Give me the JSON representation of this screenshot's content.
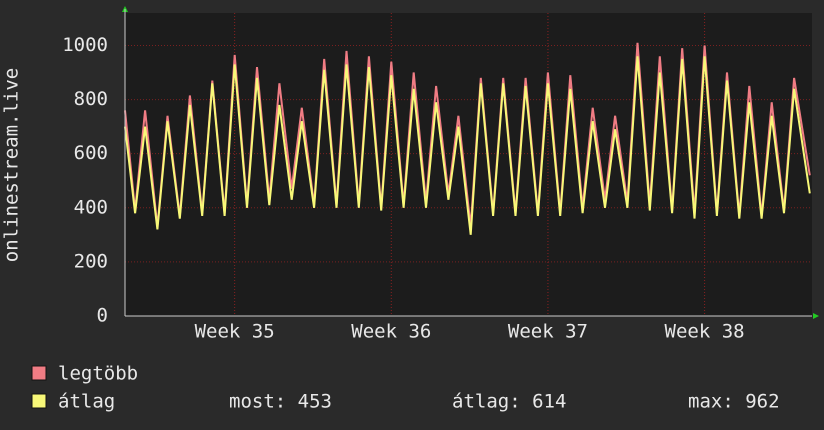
{
  "chart_data": {
    "type": "line",
    "ylabel": "onlinestream.live",
    "x": [
      0,
      0.45,
      0.9,
      1.45,
      1.9,
      2.45,
      2.9,
      3.45,
      3.9,
      4.45,
      4.9,
      5.45,
      5.9,
      6.45,
      6.9,
      7.45,
      7.9,
      8.45,
      8.9,
      9.45,
      9.9,
      10.45,
      10.9,
      11.45,
      11.9,
      12.45,
      12.9,
      13.45,
      13.9,
      14.45,
      14.9,
      15.45,
      15.9,
      16.45,
      16.9,
      17.45,
      17.9,
      18.45,
      18.9,
      19.45,
      19.9,
      20.45,
      20.9,
      21.45,
      21.9,
      22.45,
      22.9,
      23.45,
      23.9,
      24.45,
      24.9,
      25.45,
      25.9,
      26.45,
      26.9,
      27.45,
      27.9,
      28.45,
      28.9,
      29.45,
      29.9,
      30.6
    ],
    "series": [
      {
        "name": "legtöbb",
        "color": "#f07c84",
        "values": [
          760,
          390,
          760,
          330,
          740,
          370,
          815,
          380,
          870,
          380,
          965,
          410,
          920,
          430,
          860,
          470,
          770,
          410,
          950,
          410,
          980,
          410,
          960,
          400,
          940,
          410,
          900,
          420,
          850,
          450,
          740,
          330,
          880,
          380,
          880,
          380,
          880,
          380,
          900,
          380,
          890,
          400,
          770,
          430,
          740,
          420,
          1010,
          410,
          960,
          390,
          990,
          380,
          1000,
          380,
          900,
          370,
          850,
          370,
          790,
          390,
          880,
          520
        ]
      },
      {
        "name": "átlag",
        "color": "#f8f878",
        "values": [
          700,
          380,
          700,
          320,
          720,
          360,
          780,
          370,
          860,
          370,
          930,
          400,
          880,
          410,
          780,
          430,
          720,
          400,
          910,
          400,
          930,
          400,
          920,
          390,
          890,
          400,
          840,
          400,
          790,
          430,
          700,
          300,
          860,
          370,
          860,
          370,
          850,
          370,
          860,
          370,
          840,
          380,
          720,
          400,
          690,
          400,
          960,
          390,
          900,
          380,
          950,
          360,
          960,
          370,
          870,
          360,
          790,
          360,
          740,
          380,
          840,
          453
        ]
      }
    ],
    "ylim": [
      0,
      1120
    ],
    "yticks": [
      0,
      200,
      400,
      600,
      800,
      1000
    ],
    "xlim": [
      0,
      30.7
    ],
    "xticks": [
      {
        "value": 4.9,
        "label": "Week 35"
      },
      {
        "value": 11.9,
        "label": "Week 36"
      },
      {
        "value": 18.9,
        "label": "Week 37"
      },
      {
        "value": 25.9,
        "label": "Week 38"
      }
    ],
    "grid": true,
    "stats": [
      "most: 453",
      "átlag: 614",
      "max: 962"
    ]
  }
}
